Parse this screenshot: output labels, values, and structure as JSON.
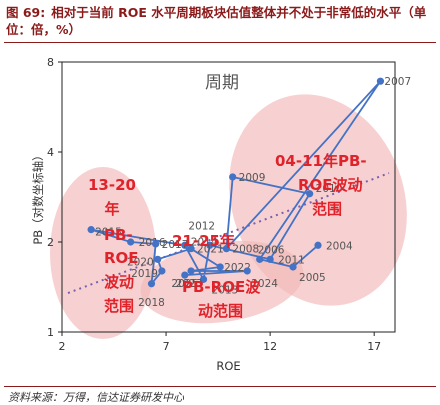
{
  "figure": {
    "title_prefix": "图 69:",
    "title": "相对于当前 ROE 水平周期板块估值整体并不处于非常低的水平（单位：倍，%）",
    "source": "资料来源：万得，信达证券研发中心"
  },
  "colors": {
    "line": "#4472c4",
    "trend": "#7a5fb0",
    "ellipse": "#f2b8b8",
    "annotation": "#e0222a",
    "title": "#8b1a1a"
  },
  "chart_data": {
    "type": "scatter",
    "title": "周期",
    "xlabel": "ROE",
    "ylabel": "PB（对数坐标轴）",
    "xlim": [
      2,
      18
    ],
    "ylim": [
      1,
      8
    ],
    "y_scale": "log",
    "x_ticks": [
      2,
      7,
      12,
      17
    ],
    "y_ticks": [
      1,
      2,
      4,
      8
    ],
    "grid": false,
    "series": [
      {
        "points": [
          {
            "year": "2007",
            "label": "2007",
            "x": 17.3,
            "y": 6.9
          },
          {
            "year": "2008",
            "label": "2008",
            "x": 9.9,
            "y": 1.9
          },
          {
            "year": "2009",
            "label": "2009",
            "x": 10.2,
            "y": 3.3
          },
          {
            "year": "2010",
            "label": "2010",
            "x": 13.9,
            "y": 2.9
          },
          {
            "year": "2011",
            "label": "2011",
            "x": 12.0,
            "y": 1.75
          },
          {
            "year": "2012",
            "label": "2012",
            "x": 9.1,
            "y": 1.95
          },
          {
            "year": "2013",
            "label": "2013",
            "x": 8.8,
            "y": 1.5
          },
          {
            "year": "2014",
            "label": "2014",
            "x": 7.9,
            "y": 1.95
          },
          {
            "year": "2015",
            "label": "2015",
            "x": 3.4,
            "y": 2.2
          },
          {
            "year": "2016",
            "label": "2016",
            "x": 5.3,
            "y": 2.0
          },
          {
            "year": "2017",
            "label": "2017",
            "x": 6.5,
            "y": 1.97
          },
          {
            "year": "2018",
            "label": "2018",
            "x": 6.3,
            "y": 1.45
          },
          {
            "year": "2019",
            "label": "2019",
            "x": 6.8,
            "y": 1.6
          },
          {
            "year": "2020",
            "label": "2020",
            "x": 6.6,
            "y": 1.75
          },
          {
            "year": "2021",
            "label": "2021",
            "x": 8.2,
            "y": 1.9
          },
          {
            "year": "2022",
            "label": "2022",
            "x": 9.6,
            "y": 1.65
          },
          {
            "year": "2023",
            "label": "2023",
            "x": 8.2,
            "y": 1.6
          },
          {
            "year": "2024",
            "label": "2024",
            "x": 10.9,
            "y": 1.6
          },
          {
            "year": "2025",
            "label": "2025",
            "x": 7.9,
            "y": 1.55
          },
          {
            "year": "2004",
            "label": "2004",
            "x": 14.3,
            "y": 1.95
          },
          {
            "year": "2005",
            "label": "2005",
            "x": 13.1,
            "y": 1.65
          },
          {
            "year": "2006",
            "label": "2006",
            "x": 11.5,
            "y": 1.75
          }
        ],
        "line_order": [
          "2004",
          "2005",
          "2006",
          "2007",
          "2008",
          "2009",
          "2010",
          "2011",
          "2012",
          "2013",
          "2014",
          "2015",
          "2016",
          "2017",
          "2018",
          "2019",
          "2020",
          "2021",
          "2022",
          "2023",
          "2024",
          "2025"
        ]
      }
    ],
    "annotations": [
      {
        "text": "13-20",
        "region": "left"
      },
      {
        "text": "年",
        "region": "left"
      },
      {
        "text": "PB-",
        "region": "left"
      },
      {
        "text": "ROE",
        "region": "left"
      },
      {
        "text": "波动",
        "region": "left"
      },
      {
        "text": "范围",
        "region": "left"
      },
      {
        "text": "04-11年PB-",
        "region": "right"
      },
      {
        "text": "ROE波动",
        "region": "right"
      },
      {
        "text": "范围",
        "region": "right"
      },
      {
        "text": "21-25年",
        "region": "middle"
      },
      {
        "text": "PB-ROE波",
        "region": "middle"
      },
      {
        "text": "动范围",
        "region": "middle"
      }
    ]
  }
}
